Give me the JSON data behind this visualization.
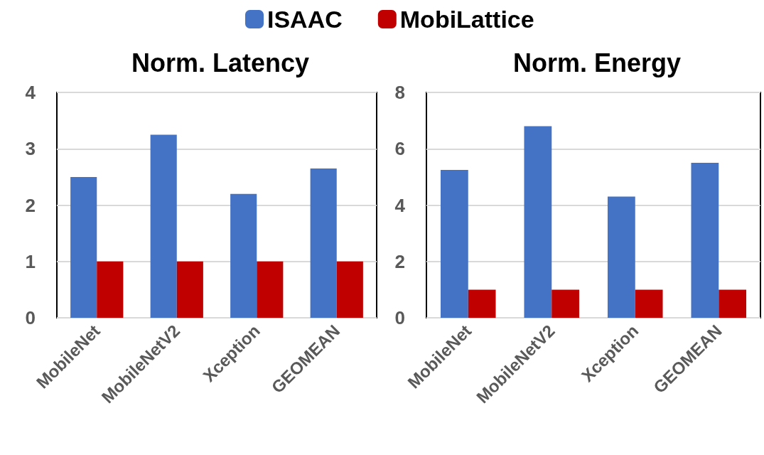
{
  "chart_data": [
    {
      "type": "bar",
      "title": "Norm. Latency",
      "categories": [
        "MobileNet",
        "MobileNetV2",
        "Xception",
        "GEOMEAN"
      ],
      "series": [
        {
          "name": "ISAAC",
          "color": "#4472c4",
          "values": [
            2.5,
            3.25,
            2.2,
            2.65
          ]
        },
        {
          "name": "MobiLattice",
          "color": "#c00000",
          "values": [
            1,
            1,
            1,
            1
          ]
        }
      ],
      "ylim": [
        0,
        4
      ],
      "yticks": [
        0,
        1,
        2,
        3,
        4
      ],
      "grid": "y",
      "legend": "top"
    },
    {
      "type": "bar",
      "title": "Norm. Energy",
      "categories": [
        "MobileNet",
        "MobileNetV2",
        "Xception",
        "GEOMEAN"
      ],
      "series": [
        {
          "color": "#4472c4",
          "values": [
            5.25,
            6.8,
            4.3,
            5.5
          ]
        },
        {
          "color": "#c00000",
          "values": [
            1,
            1,
            1,
            1
          ]
        }
      ],
      "ylim": [
        0,
        8
      ],
      "yticks": [
        0,
        2,
        4,
        6,
        8
      ],
      "grid": "y"
    }
  ]
}
